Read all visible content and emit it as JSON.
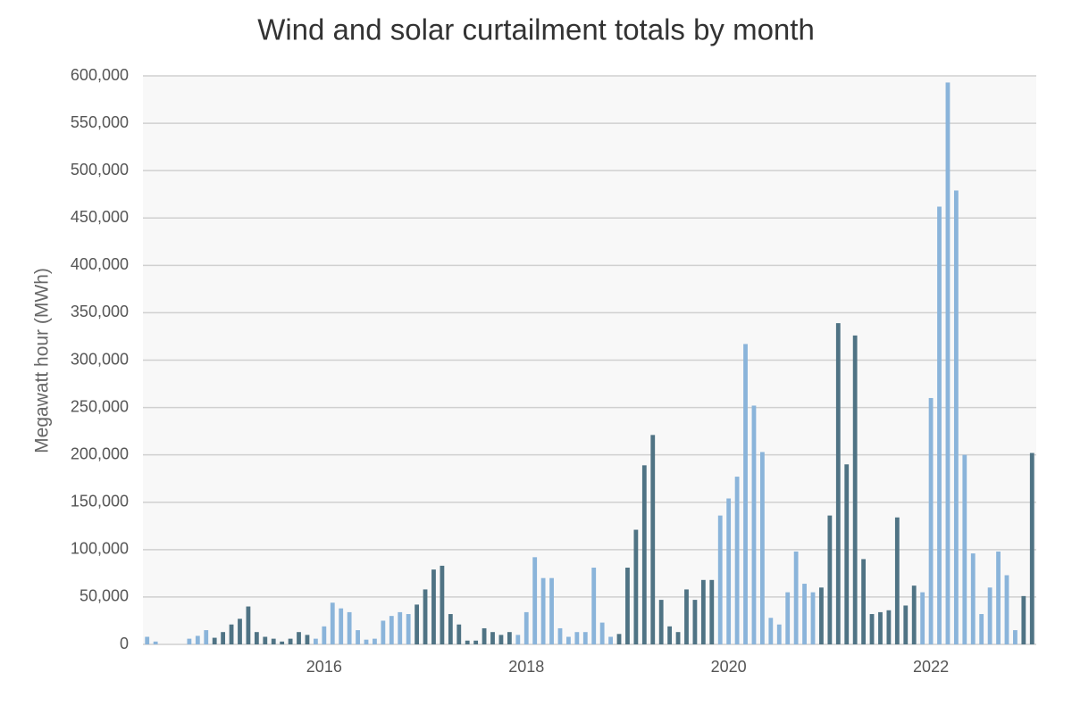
{
  "chart_data": {
    "type": "bar",
    "title": "Wind and solar curtailment totals by month",
    "y_label": "Megawatt hour (MWh)",
    "categories": [
      null,
      null,
      null,
      null,
      null,
      null,
      null,
      null,
      null,
      null,
      null,
      null,
      null,
      null,
      null,
      null,
      null,
      null,
      null,
      null,
      null,
      "2016",
      null,
      null,
      null,
      null,
      null,
      null,
      null,
      null,
      null,
      null,
      null,
      null,
      null,
      null,
      null,
      null,
      null,
      null,
      null,
      null,
      null,
      null,
      null,
      "2018",
      null,
      null,
      null,
      null,
      null,
      null,
      null,
      null,
      null,
      null,
      null,
      null,
      null,
      null,
      null,
      null,
      null,
      null,
      null,
      null,
      null,
      null,
      null,
      "2020",
      null,
      null,
      null,
      null,
      null,
      null,
      null,
      null,
      null,
      null,
      null,
      null,
      null,
      null,
      null,
      null,
      null,
      null,
      null,
      null,
      null,
      null,
      null,
      "2022",
      null,
      null,
      null,
      null,
      null,
      null,
      null,
      null,
      null,
      null,
      null,
      null
    ],
    "values": [
      8000,
      3000,
      0,
      0,
      0,
      6000,
      9000,
      15000,
      7000,
      13000,
      21000,
      27000,
      40000,
      13000,
      8000,
      6000,
      3000,
      6000,
      13000,
      10000,
      6000,
      19000,
      44000,
      38000,
      34000,
      15000,
      5000,
      6000,
      25000,
      30000,
      34000,
      32000,
      42000,
      58000,
      79000,
      83000,
      32000,
      21000,
      4000,
      4000,
      17000,
      13000,
      10000,
      13000,
      10000,
      34000,
      92000,
      70000,
      70000,
      17000,
      8000,
      13000,
      13000,
      81000,
      23000,
      8000,
      11000,
      81000,
      121000,
      189000,
      221000,
      47000,
      19000,
      13000,
      58000,
      47000,
      68000,
      68000,
      136000,
      154000,
      177000,
      317000,
      252000,
      203000,
      28000,
      21000,
      55000,
      98000,
      64000,
      55000,
      60000,
      136000,
      339000,
      190000,
      326000,
      90000,
      32000,
      34000,
      36000,
      134000,
      41000,
      62000,
      55000,
      260000,
      462000,
      593000,
      479000,
      200000,
      96000,
      32000,
      60000,
      98000,
      73000,
      15000,
      51000,
      202000
    ],
    "colors": [
      "#8ab4da",
      "#8ab4da",
      "#8ab4da",
      "#8ab4da",
      "#8ab4da",
      "#8ab4da",
      "#8ab4da",
      "#8ab4da",
      "#4f7384",
      "#4f7384",
      "#4f7384",
      "#4f7384",
      "#4f7384",
      "#4f7384",
      "#4f7384",
      "#4f7384",
      "#4f7384",
      "#4f7384",
      "#4f7384",
      "#4f7384",
      "#8ab4da",
      "#8ab4da",
      "#8ab4da",
      "#8ab4da",
      "#8ab4da",
      "#8ab4da",
      "#8ab4da",
      "#8ab4da",
      "#8ab4da",
      "#8ab4da",
      "#8ab4da",
      "#8ab4da",
      "#4f7384",
      "#4f7384",
      "#4f7384",
      "#4f7384",
      "#4f7384",
      "#4f7384",
      "#4f7384",
      "#4f7384",
      "#4f7384",
      "#4f7384",
      "#4f7384",
      "#4f7384",
      "#8ab4da",
      "#8ab4da",
      "#8ab4da",
      "#8ab4da",
      "#8ab4da",
      "#8ab4da",
      "#8ab4da",
      "#8ab4da",
      "#8ab4da",
      "#8ab4da",
      "#8ab4da",
      "#8ab4da",
      "#4f7384",
      "#4f7384",
      "#4f7384",
      "#4f7384",
      "#4f7384",
      "#4f7384",
      "#4f7384",
      "#4f7384",
      "#4f7384",
      "#4f7384",
      "#4f7384",
      "#4f7384",
      "#8ab4da",
      "#8ab4da",
      "#8ab4da",
      "#8ab4da",
      "#8ab4da",
      "#8ab4da",
      "#8ab4da",
      "#8ab4da",
      "#8ab4da",
      "#8ab4da",
      "#8ab4da",
      "#8ab4da",
      "#4f7384",
      "#4f7384",
      "#4f7384",
      "#4f7384",
      "#4f7384",
      "#4f7384",
      "#4f7384",
      "#4f7384",
      "#4f7384",
      "#4f7384",
      "#4f7384",
      "#4f7384",
      "#8ab4da",
      "#8ab4da",
      "#8ab4da",
      "#8ab4da",
      "#8ab4da",
      "#8ab4da",
      "#8ab4da",
      "#8ab4da",
      "#8ab4da",
      "#8ab4da",
      "#8ab4da",
      "#8ab4da",
      "#4f7384",
      "#4f7384"
    ],
    "ylim": [
      0,
      600000
    ],
    "yticks": [
      0,
      {
        "value": 50000,
        "label": "50,000"
      },
      {
        "value": 100000,
        "label": "100,000"
      },
      {
        "value": 150000,
        "label": "150,000"
      },
      {
        "value": 200000,
        "label": "200,000"
      },
      {
        "value": 250000,
        "label": "250,000"
      },
      {
        "value": 300000,
        "label": "300,000"
      },
      {
        "value": 350000,
        "label": "350,000"
      },
      {
        "value": 400000,
        "label": "400,000"
      },
      {
        "value": 450000,
        "label": "450,000"
      },
      {
        "value": 500000,
        "label": "500,000"
      },
      {
        "value": 550000,
        "label": "550,000"
      },
      {
        "value": 600000,
        "label": "600,000"
      }
    ],
    "grid": true
  }
}
